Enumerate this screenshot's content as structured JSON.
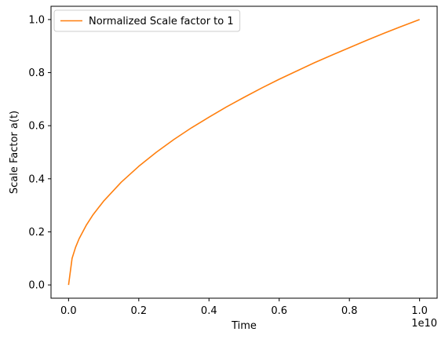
{
  "chart_data": {
    "type": "line",
    "xlabel": "Time",
    "ylabel": "Scale Factor a(t)",
    "x_offset_label": "1e10",
    "xlim": [
      -0.05,
      1.05
    ],
    "ylim": [
      -0.05,
      1.05
    ],
    "xticks": [
      0.0,
      0.2,
      0.4,
      0.6,
      0.8,
      1.0
    ],
    "xtick_labels": [
      "0.0",
      "0.2",
      "0.4",
      "0.6",
      "0.8",
      "1.0"
    ],
    "yticks": [
      0.0,
      0.2,
      0.4,
      0.6,
      0.8,
      1.0
    ],
    "ytick_labels": [
      "0.0",
      "0.2",
      "0.4",
      "0.6",
      "0.8",
      "1.0"
    ],
    "grid": false,
    "legend_position": "upper-left",
    "series": [
      {
        "name": "Normalized Scale factor to 1",
        "color": "#ff7f0e",
        "x": [
          0,
          0.01,
          0.02,
          0.03,
          0.05,
          0.07,
          0.1,
          0.15,
          0.2,
          0.25,
          0.3,
          0.35,
          0.4,
          0.45,
          0.5,
          0.55,
          0.6,
          0.65,
          0.7,
          0.75,
          0.8,
          0.85,
          0.9,
          0.95,
          1.0
        ],
        "y": [
          0.0,
          0.1,
          0.142,
          0.174,
          0.224,
          0.265,
          0.316,
          0.387,
          0.447,
          0.5,
          0.548,
          0.592,
          0.632,
          0.671,
          0.707,
          0.742,
          0.775,
          0.806,
          0.837,
          0.866,
          0.894,
          0.922,
          0.949,
          0.975,
          1.0
        ]
      }
    ]
  }
}
